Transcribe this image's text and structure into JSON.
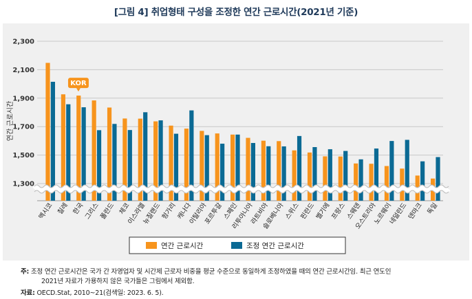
{
  "title": "[그림 4] 취업형태 구성을 조정한 연간 근로시간(2021년 기준)",
  "chart_data": {
    "type": "bar",
    "ylabel": "연간 근로시간",
    "ylim": [
      1200,
      2300
    ],
    "yticks": [
      1300,
      1500,
      1700,
      1900,
      2100,
      2300
    ],
    "ytick_labels": [
      "1,300",
      "1,500",
      "1,700",
      "1,900",
      "2,100",
      "2,300"
    ],
    "axis_break": true,
    "categories": [
      "멕시코",
      "칠레",
      "한국",
      "그리스",
      "폴란드",
      "체코",
      "이스라엘",
      "뉴질랜드",
      "헝가리",
      "캐나다",
      "이탈리아",
      "포르투갈",
      "스페인",
      "리투아니아",
      "라트비아",
      "슬로베니아",
      "스위스",
      "핀란드",
      "벨기에",
      "프랑스",
      "스웨덴",
      "오스트리아",
      "노르웨이",
      "네덜란드",
      "덴마크",
      "독일"
    ],
    "series": [
      {
        "name": "연간 근로시간",
        "color": "#f7941d",
        "values": [
          2148,
          1927,
          1918,
          1884,
          1834,
          1757,
          1756,
          1737,
          1707,
          1686,
          1670,
          1652,
          1644,
          1621,
          1601,
          1598,
          1533,
          1518,
          1491,
          1490,
          1441,
          1439,
          1423,
          1405,
          1356,
          1335
        ]
      },
      {
        "name": "조정 연간 근로시간",
        "color": "#0b6a94",
        "values": [
          2015,
          1857,
          1836,
          1675,
          1719,
          1676,
          1801,
          1744,
          1650,
          1814,
          1640,
          1580,
          1644,
          1585,
          1562,
          1561,
          1634,
          1556,
          1541,
          1529,
          1470,
          1546,
          1599,
          1607,
          1456,
          1486
        ]
      }
    ],
    "annotations": [
      {
        "text": "KOR",
        "category": "한국"
      }
    ],
    "legend": {
      "position": "bottom"
    }
  },
  "notes": {
    "note_label": "주:",
    "note_line1": "조정 연간 근로시간은 국가 간 자영업자 및 시간제 근로자 비중을 평균 수준으로 동일하게 조정하였을 때의 연간 근로시간임. 최근 연도인",
    "note_line2": "2021년 자료가 가용하지 않은 국가들은 그림에서 제외함.",
    "source_label": "자료:",
    "source_text": "OECD.Stat, 2010~21(검색일: 2023. 6. 5)."
  }
}
